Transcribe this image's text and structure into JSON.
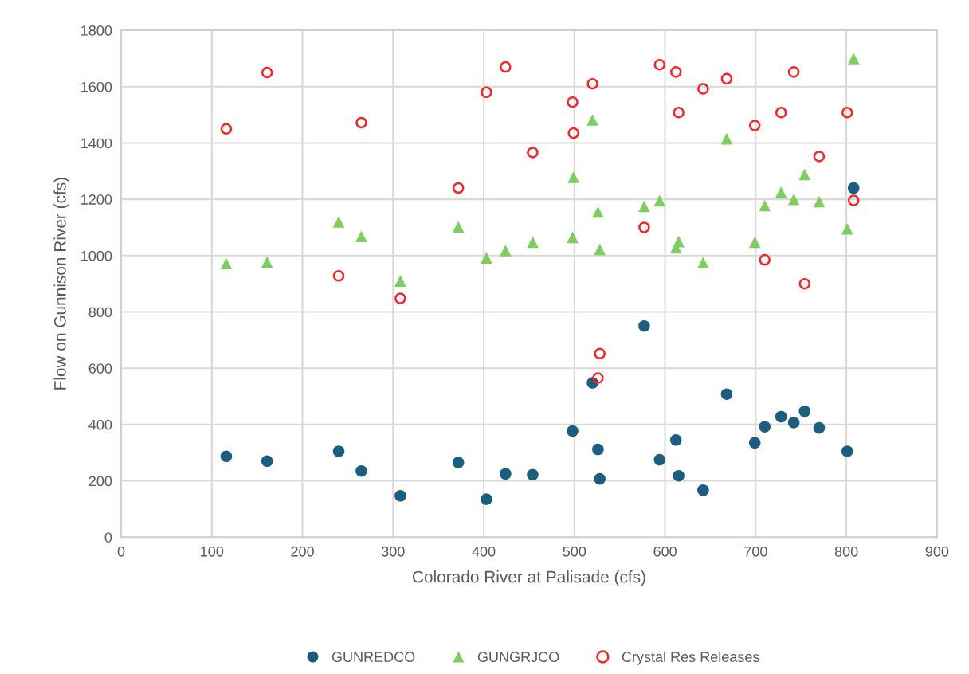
{
  "chart_data": {
    "type": "scatter",
    "xlabel": "Colorado River at Palisade (cfs)",
    "ylabel": "Flow on Gunnison River (cfs)",
    "xlim": [
      0,
      900
    ],
    "xticks": [
      0,
      100,
      200,
      300,
      400,
      500,
      600,
      700,
      800,
      900
    ],
    "ylim": [
      0,
      1800
    ],
    "yticks": [
      0,
      200,
      400,
      600,
      800,
      1000,
      1200,
      1400,
      1600,
      1800
    ],
    "grid": true,
    "legend": "bottom",
    "series": [
      {
        "name": "GUNREDCO",
        "color": "#1a5e80",
        "marker": "circle",
        "x": [
          116,
          161,
          240,
          265,
          308,
          372,
          403,
          424,
          454,
          498,
          520,
          526,
          528,
          577,
          594,
          612,
          615,
          642,
          668,
          699,
          710,
          728,
          742,
          754,
          770,
          801,
          808
        ],
        "values": [
          287,
          270,
          305,
          235,
          147,
          265,
          135,
          225,
          222,
          377,
          548,
          312,
          207,
          750,
          275,
          345,
          218,
          167,
          508,
          335,
          392,
          428,
          407,
          447,
          388,
          305,
          1240
        ]
      },
      {
        "name": "GUNGRJCO",
        "color": "#7ccf5c",
        "marker": "triangle",
        "x": [
          116,
          161,
          240,
          265,
          308,
          372,
          403,
          424,
          454,
          498,
          499,
          520,
          526,
          528,
          577,
          594,
          612,
          615,
          642,
          668,
          699,
          710,
          728,
          742,
          754,
          770,
          801,
          808
        ],
        "values": [
          972,
          977,
          1120,
          1068,
          910,
          1102,
          992,
          1018,
          1048,
          1065,
          1278,
          1482,
          1155,
          1022,
          1175,
          1195,
          1028,
          1050,
          975,
          1415,
          1048,
          1178,
          1225,
          1200,
          1288,
          1192,
          1095,
          1700
        ]
      },
      {
        "name": "Crystal Res Releases",
        "color": "#ff2020",
        "marker": "circle",
        "x": [
          116,
          161,
          240,
          265,
          308,
          372,
          403,
          424,
          454,
          498,
          499,
          520,
          526,
          528,
          577,
          594,
          612,
          615,
          642,
          668,
          699,
          710,
          728,
          742,
          754,
          770,
          801,
          808
        ],
        "values": [
          1450,
          1650,
          928,
          1472,
          848,
          1240,
          1580,
          1670,
          1366,
          1545,
          1435,
          1610,
          565,
          652,
          1100,
          1678,
          1652,
          1508,
          1592,
          1628,
          1462,
          985,
          1508,
          1652,
          900,
          1352,
          1508,
          1196
        ]
      }
    ]
  }
}
